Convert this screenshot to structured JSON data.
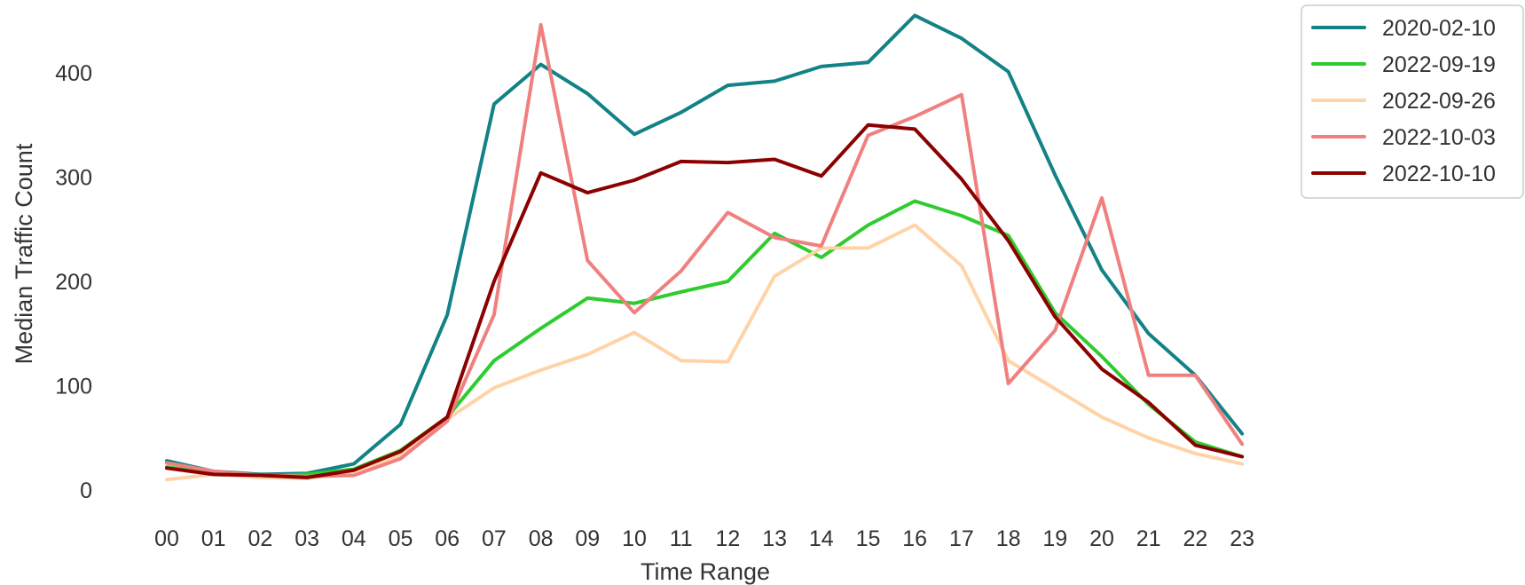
{
  "chart_data": {
    "type": "line",
    "xlabel": "Time Range",
    "ylabel": "Median Traffic Count",
    "categories": [
      "00",
      "01",
      "02",
      "03",
      "04",
      "05",
      "06",
      "07",
      "08",
      "09",
      "10",
      "11",
      "12",
      "13",
      "14",
      "15",
      "16",
      "17",
      "18",
      "19",
      "20",
      "21",
      "22",
      "23"
    ],
    "ylim": [
      -20,
      460
    ],
    "yticks": [
      0,
      100,
      200,
      300,
      400
    ],
    "grid": false,
    "legend_position": "upper right, outside plot",
    "series": [
      {
        "name": "2020-02-10",
        "color": "#138286",
        "values": [
          28,
          18,
          15,
          16,
          25,
          63,
          168,
          370,
          408,
          380,
          341,
          362,
          388,
          392,
          406,
          410,
          455,
          433,
          401,
          302,
          211,
          150,
          110,
          54
        ]
      },
      {
        "name": "2022-09-19",
        "color": "#2ecc2e",
        "values": [
          22,
          16,
          13,
          15,
          20,
          38,
          70,
          124,
          155,
          184,
          179,
          190,
          200,
          246,
          223,
          254,
          277,
          263,
          244,
          170,
          128,
          82,
          46,
          32
        ]
      },
      {
        "name": "2022-09-26",
        "color": "#ffd3a8",
        "values": [
          10,
          15,
          12,
          11,
          18,
          33,
          68,
          98,
          115,
          130,
          151,
          124,
          123,
          205,
          232,
          232,
          254,
          215,
          124,
          97,
          70,
          50,
          35,
          25
        ]
      },
      {
        "name": "2022-10-03",
        "color": "#f08080",
        "values": [
          26,
          18,
          14,
          13,
          14,
          30,
          66,
          168,
          446,
          220,
          170,
          210,
          266,
          242,
          234,
          340,
          358,
          379,
          102,
          153,
          280,
          110,
          110,
          44
        ]
      },
      {
        "name": "2022-10-10",
        "color": "#8b0000",
        "values": [
          21,
          15,
          14,
          12,
          19,
          37,
          70,
          200,
          304,
          285,
          297,
          315,
          314,
          317,
          301,
          350,
          346,
          298,
          239,
          166,
          116,
          84,
          43,
          32
        ]
      }
    ]
  }
}
